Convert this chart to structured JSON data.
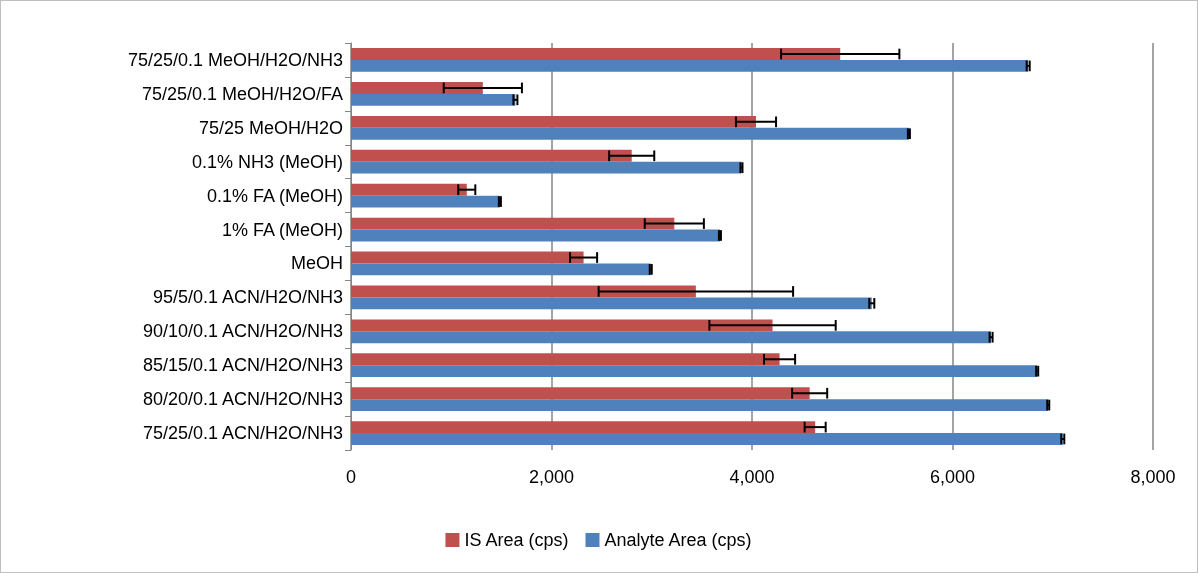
{
  "chart_data": {
    "type": "bar",
    "orientation": "horizontal",
    "categories": [
      "75/25/0.1 MeOH/H2O/NH3",
      "75/25/0.1 MeOH/H2O/FA",
      "75/25 MeOH/H2O",
      "0.1% NH3 (MeOH)",
      "0.1% FA (MeOH)",
      "1% FA (MeOH)",
      "MeOH",
      "95/5/0.1 ACN/H2O/NH3",
      "90/10/0.1 ACN/H2O/NH3",
      "85/15/0.1 ACN/H2O/NH3",
      "80/20/0.1 ACN/H2O/NH3",
      "75/25/0.1 ACN/H2O/NH3"
    ],
    "series": [
      {
        "name": "IS Area (cps)",
        "color": "#c0504d",
        "values": [
          4880,
          1315,
          4040,
          2800,
          1155,
          3225,
          2320,
          3440,
          4205,
          4275,
          4575,
          4630
        ],
        "errors": [
          590,
          390,
          200,
          225,
          85,
          295,
          135,
          970,
          630,
          155,
          175,
          105
        ]
      },
      {
        "name": "Analyte Area (cps)",
        "color": "#4f81bd",
        "values": [
          6755,
          1640,
          5565,
          3895,
          1485,
          3680,
          2990,
          5195,
          6385,
          6845,
          6955,
          7100
        ],
        "errors": [
          15,
          20,
          10,
          10,
          10,
          10,
          10,
          25,
          15,
          10,
          10,
          15
        ]
      }
    ],
    "xlim": [
      0,
      8000
    ],
    "xticks": [
      0,
      {
        "value": 2000,
        "label": "2,000"
      },
      {
        "value": 4000,
        "label": "4,000"
      },
      {
        "value": 6000,
        "label": "6,000"
      },
      {
        "value": 8000,
        "label": "8,000"
      }
    ],
    "grid": "x",
    "legend": "bottom"
  }
}
